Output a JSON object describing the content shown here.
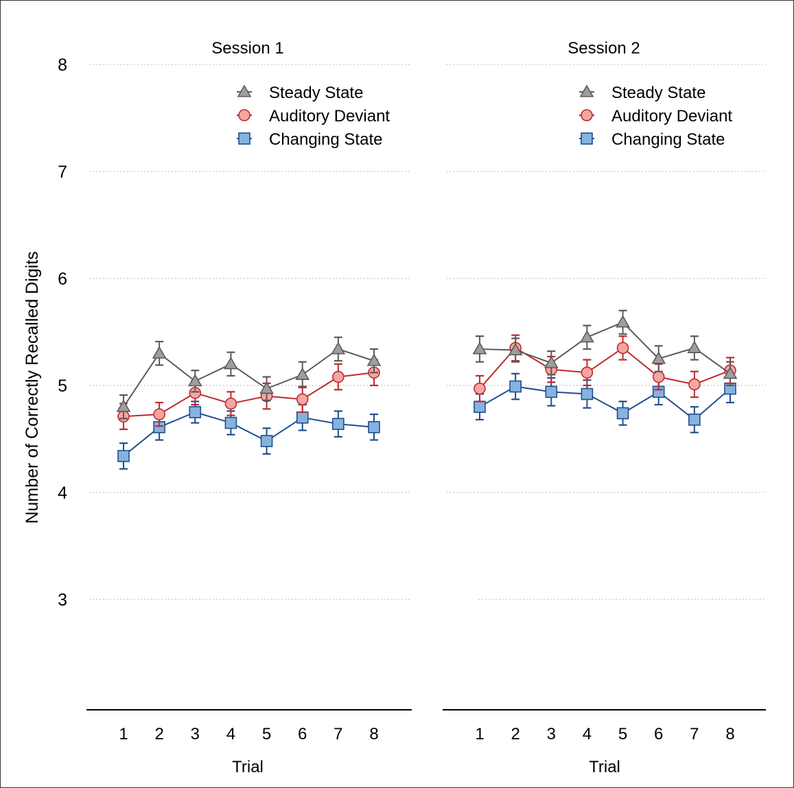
{
  "chart_data": {
    "type": "line",
    "ylabel": "Number of Correctly Recalled Digits",
    "xlabel": "Trial",
    "ylim": [
      2,
      8
    ],
    "yticks": [
      3,
      4,
      5,
      6,
      7,
      8
    ],
    "x": [
      1,
      2,
      3,
      4,
      5,
      6,
      7,
      8
    ],
    "grid": "horizontal dotted",
    "legend_position": "top-right",
    "error_bars": true,
    "colors": {
      "steady": "#5a5a5a",
      "steady_fill": "#9e9e9e",
      "deviant": "#c0282d",
      "deviant_fill": "#f4a6a0",
      "changing": "#1f4e8c",
      "changing_fill": "#86b2e0"
    },
    "panels": [
      {
        "title": "Session 1",
        "xlabel": "Trial",
        "series": [
          {
            "name": "Steady State",
            "key": "steady",
            "marker": "triangle",
            "values": [
              4.8,
              5.3,
              5.04,
              5.2,
              4.97,
              5.1,
              5.34,
              5.23
            ],
            "errors": [
              0.11,
              0.11,
              0.1,
              0.11,
              0.11,
              0.12,
              0.11,
              0.11
            ]
          },
          {
            "name": "Auditory Deviant",
            "key": "deviant",
            "marker": "circle",
            "values": [
              4.71,
              4.73,
              4.93,
              4.83,
              4.9,
              4.87,
              5.08,
              5.12
            ],
            "errors": [
              0.12,
              0.11,
              0.11,
              0.11,
              0.12,
              0.12,
              0.12,
              0.12
            ]
          },
          {
            "name": "Changing State",
            "key": "changing",
            "marker": "square",
            "values": [
              4.34,
              4.61,
              4.75,
              4.65,
              4.48,
              4.7,
              4.64,
              4.61
            ],
            "errors": [
              0.12,
              0.12,
              0.1,
              0.11,
              0.12,
              0.12,
              0.12,
              0.12
            ]
          }
        ]
      },
      {
        "title": "Session 2",
        "xlabel": "Trial",
        "series": [
          {
            "name": "Steady State",
            "key": "steady",
            "marker": "triangle",
            "values": [
              5.34,
              5.33,
              5.21,
              5.45,
              5.59,
              5.25,
              5.35,
              5.11
            ],
            "errors": [
              0.12,
              0.11,
              0.11,
              0.11,
              0.11,
              0.12,
              0.11,
              0.11
            ]
          },
          {
            "name": "Auditory Deviant",
            "key": "deviant",
            "marker": "circle",
            "values": [
              4.97,
              5.35,
              5.15,
              5.12,
              5.35,
              5.08,
              5.01,
              5.14
            ],
            "errors": [
              0.12,
              0.12,
              0.12,
              0.12,
              0.11,
              0.12,
              0.12,
              0.12
            ]
          },
          {
            "name": "Changing State",
            "key": "changing",
            "marker": "square",
            "values": [
              4.8,
              4.99,
              4.94,
              4.92,
              4.74,
              4.94,
              4.68,
              4.97
            ],
            "errors": [
              0.12,
              0.12,
              0.13,
              0.13,
              0.11,
              0.12,
              0.12,
              0.13
            ]
          }
        ]
      }
    ]
  }
}
